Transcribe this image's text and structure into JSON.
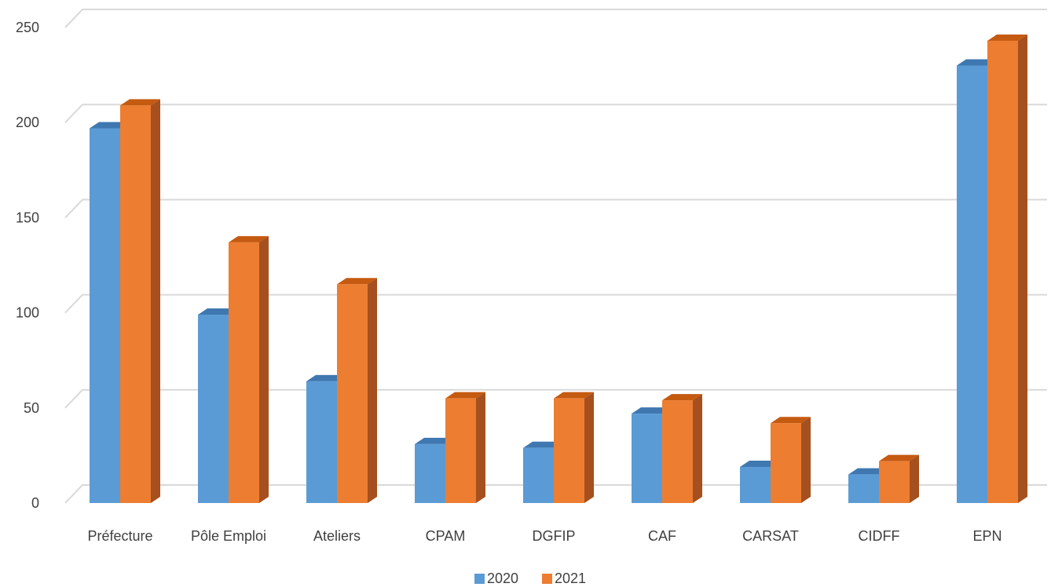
{
  "chart_data": {
    "type": "bar",
    "title": "",
    "xlabel": "",
    "ylabel": "",
    "categories": [
      "Préfecture",
      "Pôle Emploi",
      "Ateliers",
      "CPAM",
      "DGFIP",
      "CAF",
      "CARSAT",
      "CIDFF",
      "EPN"
    ],
    "series": [
      {
        "name": "2020",
        "values": [
          197,
          99,
          64,
          31,
          29,
          47,
          19,
          15,
          230
        ]
      },
      {
        "name": "2021",
        "values": [
          209,
          137,
          115,
          55,
          55,
          54,
          42,
          22,
          243
        ]
      }
    ],
    "ylim": [
      0,
      250
    ],
    "yticks": [
      0,
      50,
      100,
      150,
      200,
      250
    ],
    "grid": true,
    "legend_position": "bottom-center",
    "style": "3d-clustered-column",
    "colors": {
      "2020": {
        "front": "#5b9bd5",
        "top": "#3f78b0",
        "side": "#41719c"
      },
      "2021": {
        "front": "#ed7d31",
        "top": "#c55a11",
        "side": "#a5501e"
      },
      "grid": "#d9d9d9",
      "text": "#404040"
    }
  }
}
